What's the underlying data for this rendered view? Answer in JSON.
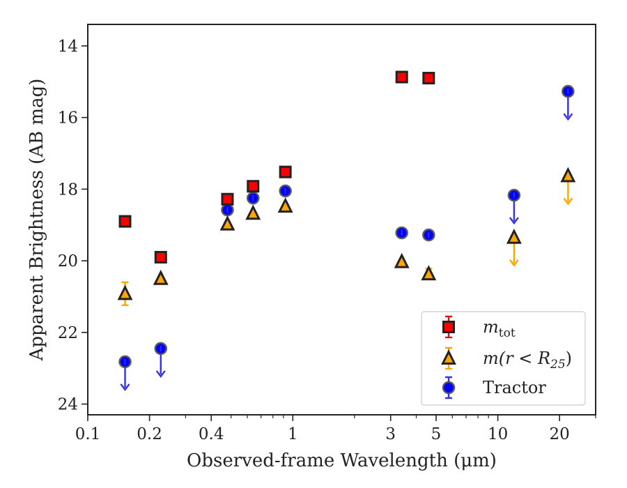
{
  "chart_data": {
    "type": "scatter",
    "title": "",
    "xlabel": "Observed-frame Wavelength (μm)",
    "ylabel": "Apparent Brightness (AB mag)",
    "xscale": "log",
    "xlim": [
      0.1,
      30
    ],
    "ylim": [
      24.3,
      13.4
    ],
    "y_inverted": true,
    "xticks": [
      {
        "value": 0.1,
        "label": "0.1"
      },
      {
        "value": 0.2,
        "label": "0.2"
      },
      {
        "value": 0.4,
        "label": "0.4"
      },
      {
        "value": 1,
        "label": "1"
      },
      {
        "value": 3,
        "label": "3"
      },
      {
        "value": 5,
        "label": "5"
      },
      {
        "value": 10,
        "label": "10"
      },
      {
        "value": 20,
        "label": "20"
      }
    ],
    "yticks": [
      {
        "value": 14,
        "label": "14"
      },
      {
        "value": 16,
        "label": "16"
      },
      {
        "value": 18,
        "label": "18"
      },
      {
        "value": 20,
        "label": "20"
      },
      {
        "value": 22,
        "label": "22"
      },
      {
        "value": 24,
        "label": "24"
      }
    ],
    "legend_position": "lower right",
    "series": [
      {
        "name": "m_tot",
        "legend_main": "m",
        "legend_sub": "tot",
        "marker": "square",
        "color": "#ff0000",
        "errcolor": "#e01010",
        "points": [
          {
            "x": 0.152,
            "y": 18.9
          },
          {
            "x": 0.227,
            "y": 19.9
          },
          {
            "x": 0.48,
            "y": 18.28
          },
          {
            "x": 0.64,
            "y": 17.92
          },
          {
            "x": 0.92,
            "y": 17.52
          },
          {
            "x": 3.4,
            "y": 14.87
          },
          {
            "x": 4.6,
            "y": 14.9
          }
        ]
      },
      {
        "name": "m(r < R25)",
        "legend_main": "m(r < R",
        "legend_sub": "25",
        "legend_end": ")",
        "marker": "triangle",
        "color": "#ffa500",
        "errcolor": "#ffa500",
        "points": [
          {
            "x": 0.152,
            "y": 20.92,
            "err": 0.32
          },
          {
            "x": 0.227,
            "y": 20.5
          },
          {
            "x": 0.48,
            "y": 18.98
          },
          {
            "x": 0.64,
            "y": 18.68
          },
          {
            "x": 0.92,
            "y": 18.48
          },
          {
            "x": 3.4,
            "y": 20.03
          },
          {
            "x": 4.6,
            "y": 20.37,
            "err": 0.15
          },
          {
            "x": 12.0,
            "y": 19.35,
            "upper_limit": true
          },
          {
            "x": 22.0,
            "y": 17.63,
            "upper_limit": true
          }
        ]
      },
      {
        "name": "Tractor",
        "legend_main": "Tractor",
        "marker": "circle",
        "color": "#0000ff",
        "errcolor": "#3030ee",
        "points": [
          {
            "x": 0.152,
            "y": 22.82,
            "upper_limit": true
          },
          {
            "x": 0.227,
            "y": 22.45,
            "upper_limit": true
          },
          {
            "x": 0.48,
            "y": 18.58
          },
          {
            "x": 0.64,
            "y": 18.25
          },
          {
            "x": 0.92,
            "y": 18.05
          },
          {
            "x": 3.4,
            "y": 19.22
          },
          {
            "x": 4.6,
            "y": 19.28
          },
          {
            "x": 12.0,
            "y": 18.17,
            "upper_limit": true
          },
          {
            "x": 22.0,
            "y": 15.27,
            "upper_limit": true
          }
        ]
      }
    ]
  }
}
